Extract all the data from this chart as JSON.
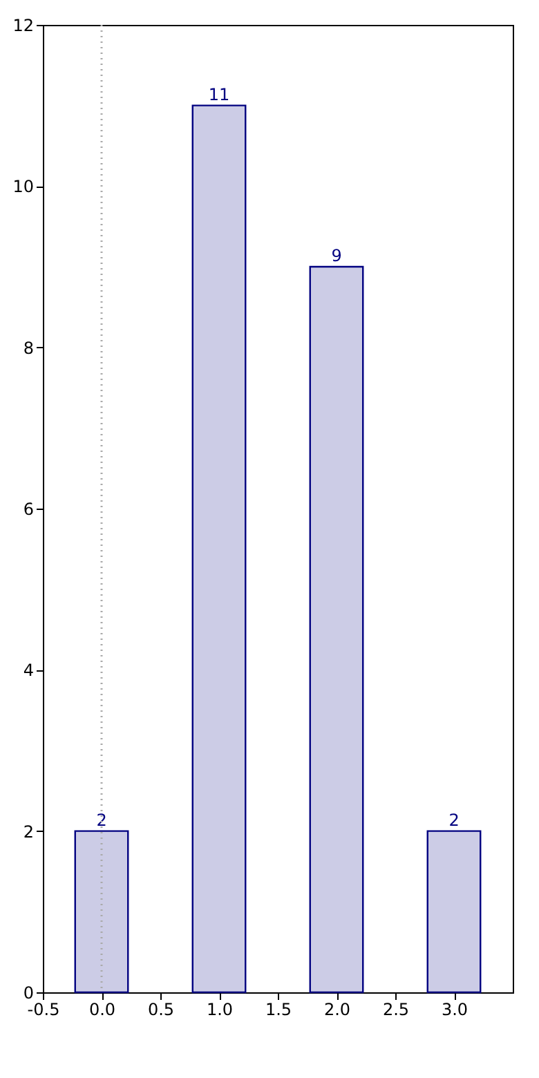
{
  "chart_data": {
    "type": "bar",
    "x": [
      0,
      1,
      2,
      3
    ],
    "values": [
      2,
      11,
      9,
      2
    ],
    "color": "#000080",
    "xlim": [
      -0.5,
      3.5
    ],
    "xticks": [
      -0.5,
      {
        "value": 0,
        "label": "0.0"
      },
      0.5,
      {
        "value": 1,
        "label": "1.0"
      },
      1.5,
      {
        "value": 2,
        "label": "2.0"
      },
      2.5,
      {
        "value": 3,
        "label": "3.0"
      }
    ],
    "ylim": [
      0,
      12
    ],
    "yticks": [
      0,
      2,
      4,
      6,
      8,
      10,
      12
    ],
    "ref_lines": [
      {
        "axis": "x",
        "value": 0,
        "color": "#aaaaaa",
        "line_style": "dotted"
      }
    ],
    "data_labels": true,
    "grid": false
  }
}
